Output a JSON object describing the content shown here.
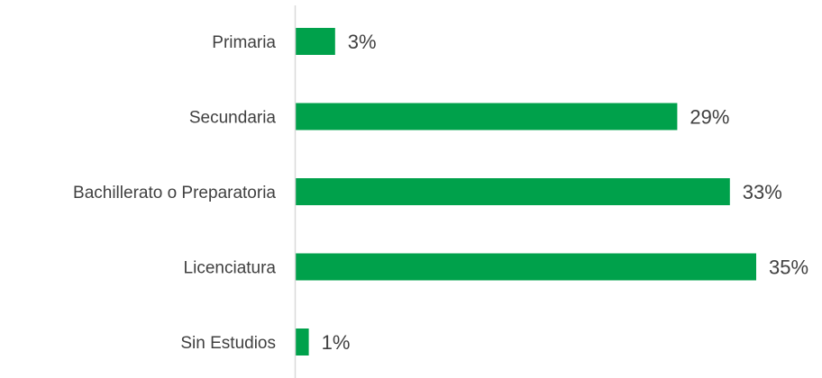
{
  "chart_data": {
    "type": "bar",
    "orientation": "horizontal",
    "categories": [
      "Primaria",
      "Secundaria",
      "Bachillerato o Preparatoria",
      "Licenciatura",
      "Sin Estudios"
    ],
    "values": [
      3,
      29,
      33,
      35,
      1
    ],
    "value_labels": [
      "3%",
      "29%",
      "33%",
      "35%",
      "1%"
    ],
    "unit": "%",
    "title": "",
    "xlabel": "",
    "ylabel": "",
    "xlim": [
      0,
      35
    ],
    "grid": false,
    "legend": "none",
    "colors": {
      "bar": "#00A14B",
      "axis": "#D9D9D9",
      "text": "#404040"
    }
  }
}
